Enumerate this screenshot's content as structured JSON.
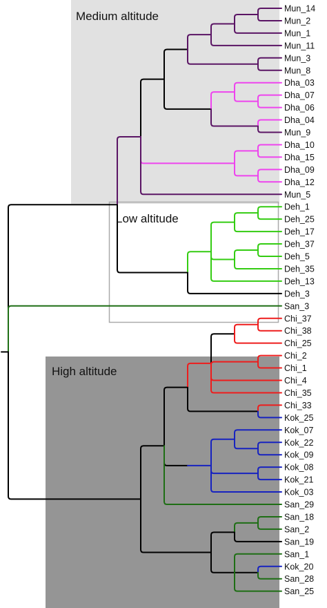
{
  "regions": {
    "medium": "Medium altitude",
    "low": "Low altitude",
    "high": "High altitude"
  },
  "colors": {
    "mun": "#5a1464",
    "dha": "#ee44ee",
    "deh": "#33cc11",
    "san": "#1e6e14",
    "chi": "#ee1c1c",
    "kok": "#1622c0",
    "internal": "#000000",
    "medium_box": "#e1e1e1",
    "high_box": "#959595",
    "low_box_border": "#aaaaaa"
  },
  "tree": {
    "c": "black",
    "k": [
      {
        "c": "black",
        "k": [
          {
            "c": "mun",
            "k": [
              {
                "c": "black",
                "k": [
                  {
                    "c": "black",
                    "k": [
                      {
                        "c": "mun",
                        "k": [
                          {
                            "c": "mun",
                            "k": [
                              {
                                "c": "mun",
                                "k": [
                                  {
                                    "c": "mun",
                                    "l": "Mun_14"
                                  },
                                  {
                                    "c": "mun",
                                    "l": "Mun_2"
                                  }
                                ]
                              },
                              {
                                "c": "mun",
                                "l": "Mun_1"
                              }
                            ]
                          },
                          {
                            "c": "mun",
                            "l": "Mun_11"
                          }
                        ]
                      },
                      {
                        "c": "mun",
                        "k": [
                          {
                            "c": "mun",
                            "l": "Mun_3"
                          },
                          {
                            "c": "mun",
                            "l": "Mun_8"
                          }
                        ]
                      }
                    ]
                  },
                  {
                    "c": "black",
                    "k": [
                      {
                        "c": "dha",
                        "k": [
                          {
                            "c": "dha",
                            "l": "Dha_03"
                          },
                          {
                            "c": "dha",
                            "k": [
                              {
                                "c": "dha",
                                "l": "Dha_07"
                              },
                              {
                                "c": "dha",
                                "l": "Dha_06"
                              }
                            ]
                          }
                        ]
                      },
                      {
                        "c": "mun",
                        "k": [
                          {
                            "c": "dha",
                            "l": "Dha_04"
                          },
                          {
                            "c": "mun",
                            "l": "Mun_9"
                          }
                        ]
                      }
                    ]
                  }
                ]
              },
              {
                "c": "dha",
                "k": [
                  {
                    "c": "dha",
                    "k": [
                      {
                        "c": "dha",
                        "l": "Dha_10"
                      },
                      {
                        "c": "dha",
                        "l": "Dha_15"
                      }
                    ]
                  },
                  {
                    "c": "dha",
                    "k": [
                      {
                        "c": "dha",
                        "l": "Dha_09"
                      },
                      {
                        "c": "dha",
                        "l": "Dha_12"
                      }
                    ]
                  }
                ]
              },
              {
                "c": "mun",
                "l": "Mun_5"
              }
            ]
          },
          {
            "c": "black",
            "k": [
              {
                "c": "deh",
                "k": [
                  {
                    "c": "deh",
                    "k": [
                      {
                        "c": "deh",
                        "k": [
                          {
                            "c": "deh",
                            "l": "Deh_1"
                          },
                          {
                            "c": "deh",
                            "l": "Deh_25"
                          }
                        ]
                      },
                      {
                        "c": "deh",
                        "l": "Deh_17"
                      }
                    ]
                  },
                  {
                    "c": "deh",
                    "k": [
                      {
                        "c": "deh",
                        "k": [
                          {
                            "c": "deh",
                            "l": "Deh_37"
                          },
                          {
                            "c": "deh",
                            "l": "Deh_5"
                          }
                        ]
                      },
                      {
                        "c": "deh",
                        "l": "Deh_35"
                      }
                    ]
                  },
                  {
                    "c": "deh",
                    "l": "Deh_13"
                  }
                ]
              },
              {
                "c": "black",
                "l": "Deh_3"
              }
            ]
          }
        ]
      },
      {
        "c": "san",
        "l": "San_3"
      },
      {
        "c": "black",
        "k": [
          {
            "c": "black",
            "k": [
              {
                "c": "black",
                "k": [
                  {
                    "c": "chi",
                    "k": [
                      {
                        "c": "black",
                        "k": [
                          {
                            "c": "chi",
                            "k": [
                              {
                                "c": "chi",
                                "l": "Chi_37"
                              },
                              {
                                "c": "chi",
                                "l": "Chi_38"
                              }
                            ]
                          },
                          {
                            "c": "chi",
                            "l": "Chi_25"
                          }
                        ]
                      },
                      {
                        "c": "chi",
                        "k": [
                          {
                            "c": "chi",
                            "l": "Chi_2"
                          },
                          {
                            "c": "chi",
                            "l": "Chi_1"
                          }
                        ]
                      },
                      {
                        "c": "chi",
                        "l": "Chi_4"
                      },
                      {
                        "c": "chi",
                        "l": "Chi_35"
                      }
                    ]
                  },
                  {
                    "c": "black",
                    "k": [
                      {
                        "c": "chi",
                        "l": "Chi_33"
                      },
                      {
                        "c": "kok",
                        "l": "Kok_25"
                      }
                    ]
                  }
                ]
              },
              {
                "c": "black",
                "k": [
                  {
                    "c": "kok",
                    "k": [
                      {
                        "c": "kok",
                        "k": [
                          {
                            "c": "kok",
                            "l": "Kok_07"
                          },
                          {
                            "c": "kok",
                            "k": [
                              {
                                "c": "kok",
                                "l": "Kok_22"
                              },
                              {
                                "c": "kok",
                                "l": "Kok_09"
                              }
                            ]
                          }
                        ]
                      },
                      {
                        "c": "kok",
                        "k": [
                          {
                            "c": "kok",
                            "l": "Kok_08"
                          },
                          {
                            "c": "kok",
                            "l": "Kok_21"
                          }
                        ]
                      },
                      {
                        "c": "kok",
                        "l": "Kok_03"
                      }
                    ]
                  }
                ]
              },
              {
                "c": "san",
                "l": "San_29"
              }
            ]
          },
          {
            "c": "black",
            "k": [
              {
                "c": "black",
                "k": [
                  {
                    "c": "san",
                    "k": [
                      {
                        "c": "san",
                        "l": "San_18"
                      },
                      {
                        "c": "san",
                        "l": "San_2"
                      }
                    ]
                  },
                  {
                    "c": "black",
                    "l": "San_19"
                  }
                ]
              },
              {
                "c": "black",
                "k": [
                  {
                    "c": "san",
                    "l": "San_1"
                  },
                  {
                    "c": "black",
                    "k": [
                      {
                        "c": "kok",
                        "l": "Kok_20"
                      },
                      {
                        "c": "san",
                        "l": "San_28"
                      }
                    ]
                  },
                  {
                    "c": "san",
                    "l": "San_25"
                  }
                ]
              }
            ]
          }
        ]
      }
    ]
  }
}
